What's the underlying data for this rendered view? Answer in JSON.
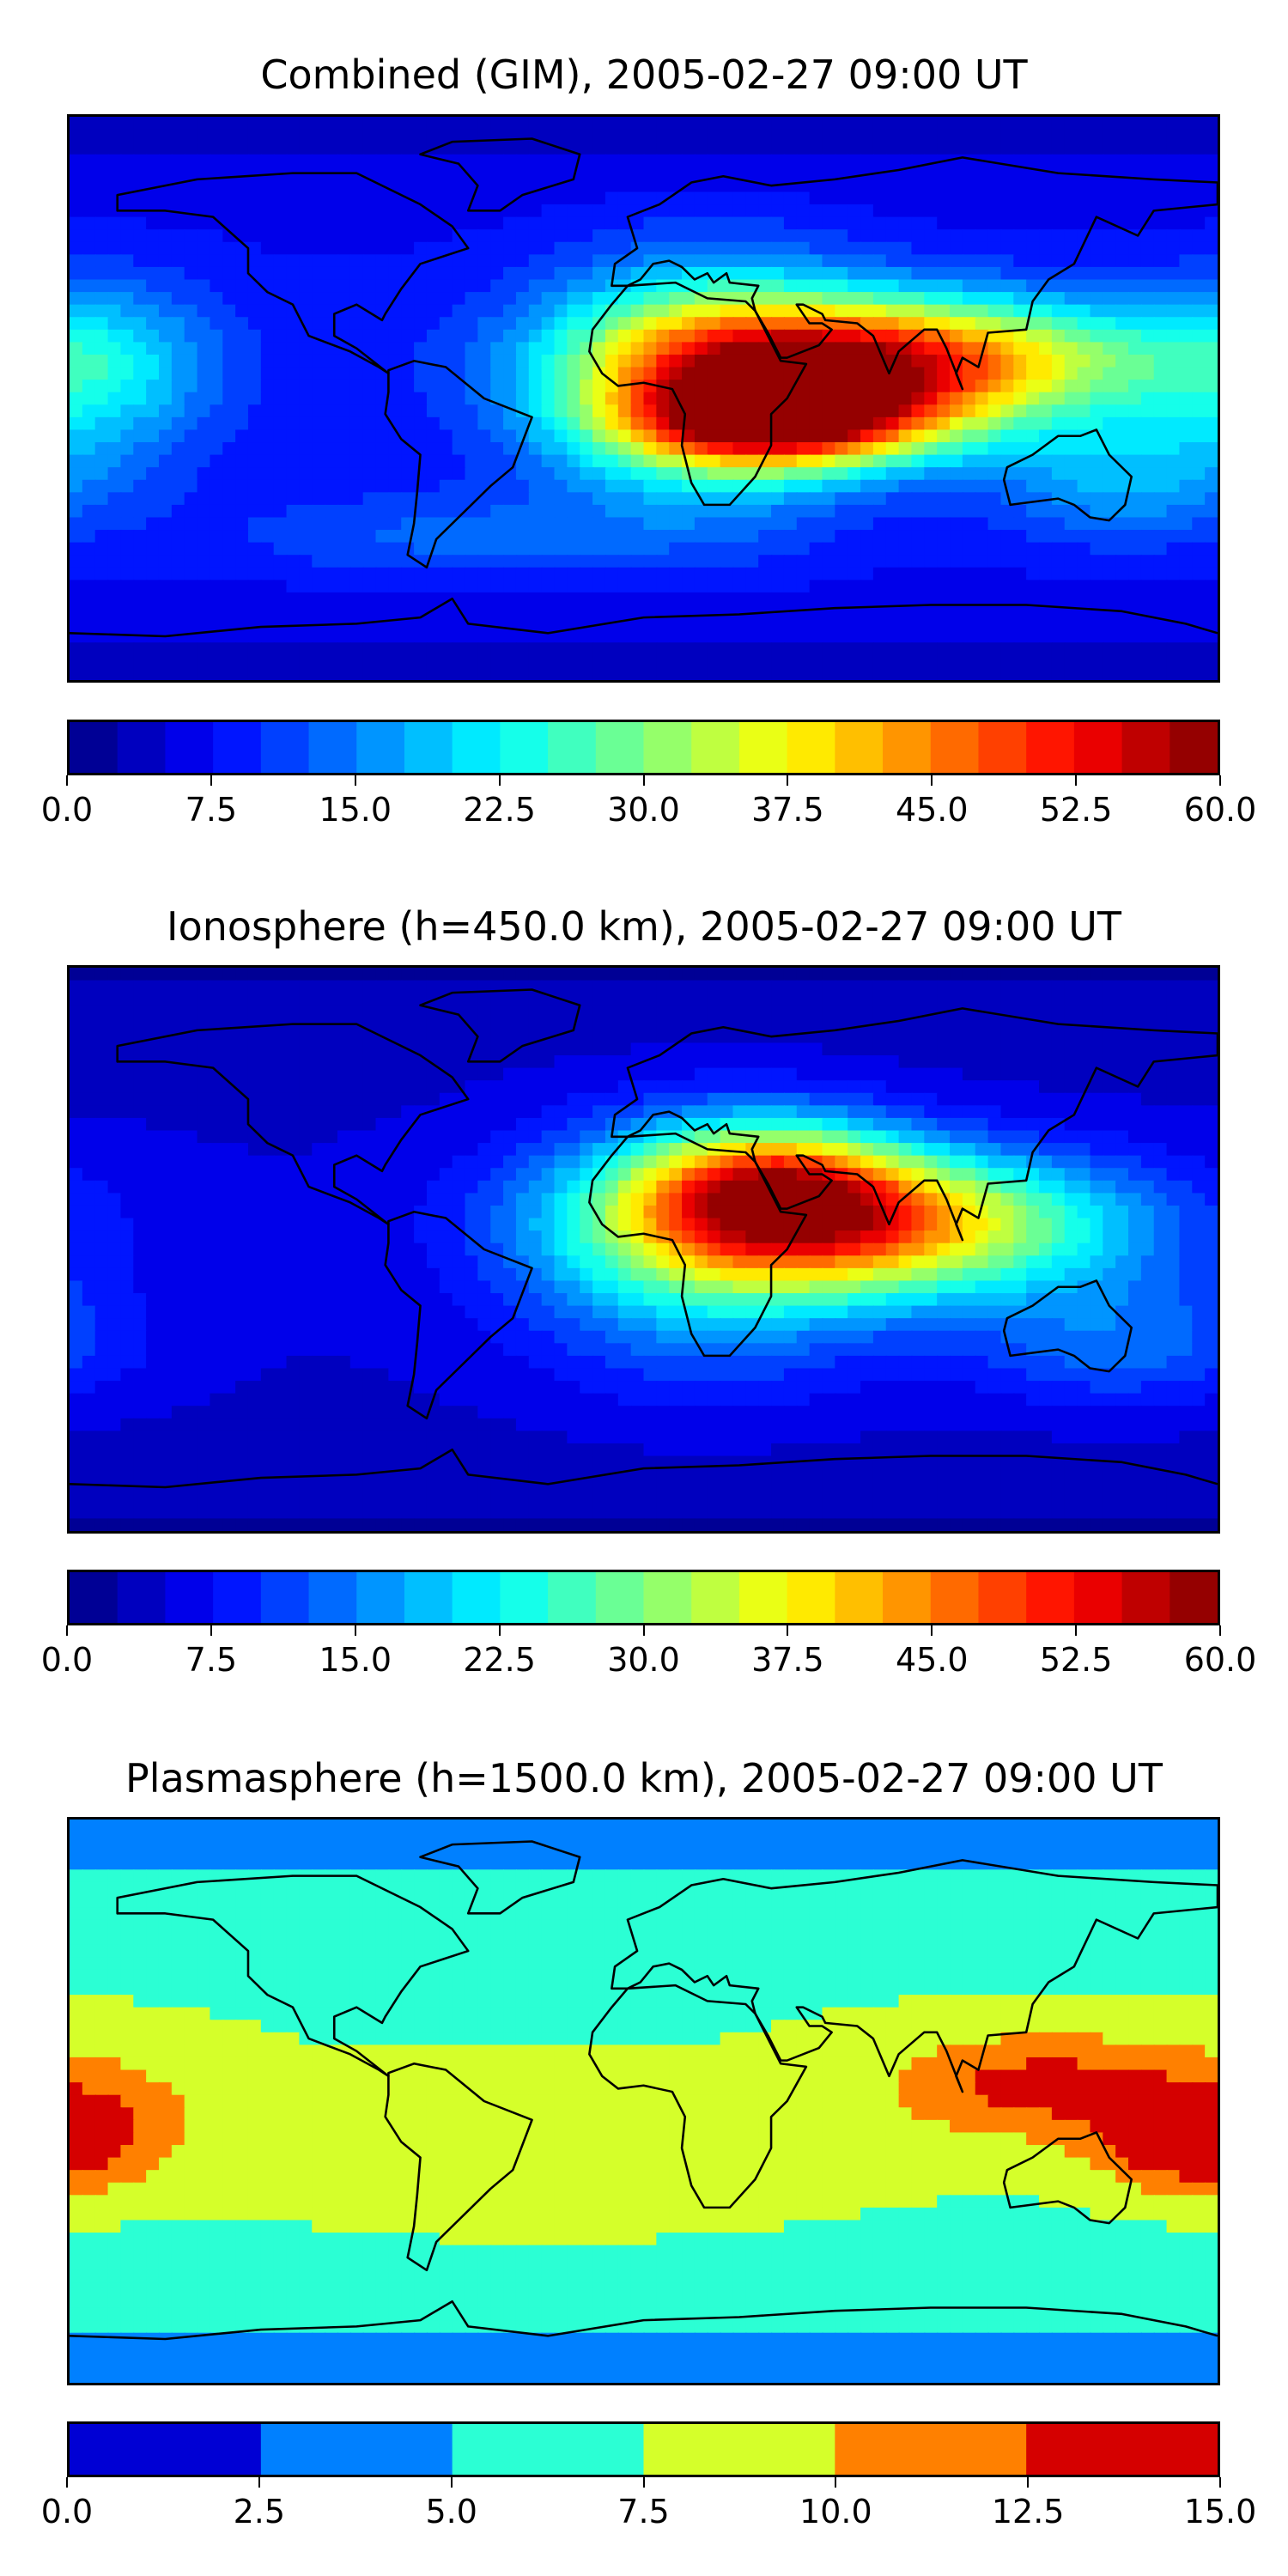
{
  "chart_data": [
    {
      "type": "heatmap",
      "title": "Combined (GIM), 2005-02-27 09:00 UT",
      "colorbar": {
        "min": 0.0,
        "max": 60.0,
        "levels": 24,
        "tick_labels": [
          "0.0",
          "7.5",
          "15.0",
          "22.5",
          "30.0",
          "37.5",
          "45.0",
          "52.5",
          "60.0"
        ],
        "tick_values": [
          0,
          7.5,
          15,
          22.5,
          30,
          37.5,
          45,
          52.5,
          60
        ]
      },
      "field": {
        "background": 8,
        "blobs": [
          {
            "lon": 75,
            "lat": 12,
            "value": 52,
            "sx": 55,
            "sy": 14
          },
          {
            "lon": 45,
            "lat": -8,
            "value": 46,
            "sx": 35,
            "sy": 10
          },
          {
            "lon": 20,
            "lat": 5,
            "value": 30,
            "sx": 35,
            "sy": 28
          },
          {
            "lon": -170,
            "lat": 10,
            "value": 20,
            "sx": 25,
            "sy": 20
          },
          {
            "lon": 150,
            "lat": -25,
            "value": 18,
            "sx": 30,
            "sy": 15
          },
          {
            "lon": -60,
            "lat": -45,
            "value": 14,
            "sx": 50,
            "sy": 10
          }
        ]
      }
    },
    {
      "type": "heatmap",
      "title": "Ionosphere  (h=450.0 km), 2005-02-27 09:00 UT",
      "colorbar": {
        "min": 0.0,
        "max": 60.0,
        "levels": 24,
        "tick_labels": [
          "0.0",
          "7.5",
          "15.0",
          "22.5",
          "30.0",
          "37.5",
          "45.0",
          "52.5",
          "60.0"
        ],
        "tick_values": [
          0,
          7.5,
          15,
          22.5,
          30,
          37.5,
          45,
          52.5,
          60
        ]
      },
      "field": {
        "background": 5,
        "blobs": [
          {
            "lon": 70,
            "lat": 8,
            "value": 42,
            "sx": 55,
            "sy": 16
          },
          {
            "lon": 40,
            "lat": 22,
            "value": 30,
            "sx": 30,
            "sy": 14
          },
          {
            "lon": 20,
            "lat": 0,
            "value": 20,
            "sx": 40,
            "sy": 30
          },
          {
            "lon": 150,
            "lat": -30,
            "value": 14,
            "sx": 35,
            "sy": 15
          }
        ]
      }
    },
    {
      "type": "heatmap",
      "title": "Plasmasphere (h=1500.0 km), 2005-02-27 09:00 UT",
      "colorbar": {
        "min": 0.0,
        "max": 15.0,
        "levels": 6,
        "tick_labels": [
          "0.0",
          "2.5",
          "5.0",
          "7.5",
          "10.0",
          "12.5",
          "15.0"
        ],
        "tick_values": [
          0,
          2.5,
          5,
          7.5,
          10,
          12.5,
          15
        ]
      },
      "field": {
        "background": 7.5,
        "blobs": [
          {
            "lon": 125,
            "lat": 5,
            "value": 13.5,
            "sx": 35,
            "sy": 12
          },
          {
            "lon": 170,
            "lat": -15,
            "value": 13.5,
            "sx": 20,
            "sy": 10
          },
          {
            "lon": -170,
            "lat": -5,
            "value": 11,
            "sx": 25,
            "sy": 15
          },
          {
            "lon": -30,
            "lat": -25,
            "value": 9,
            "sx": 60,
            "sy": 15
          }
        ]
      }
    }
  ]
}
